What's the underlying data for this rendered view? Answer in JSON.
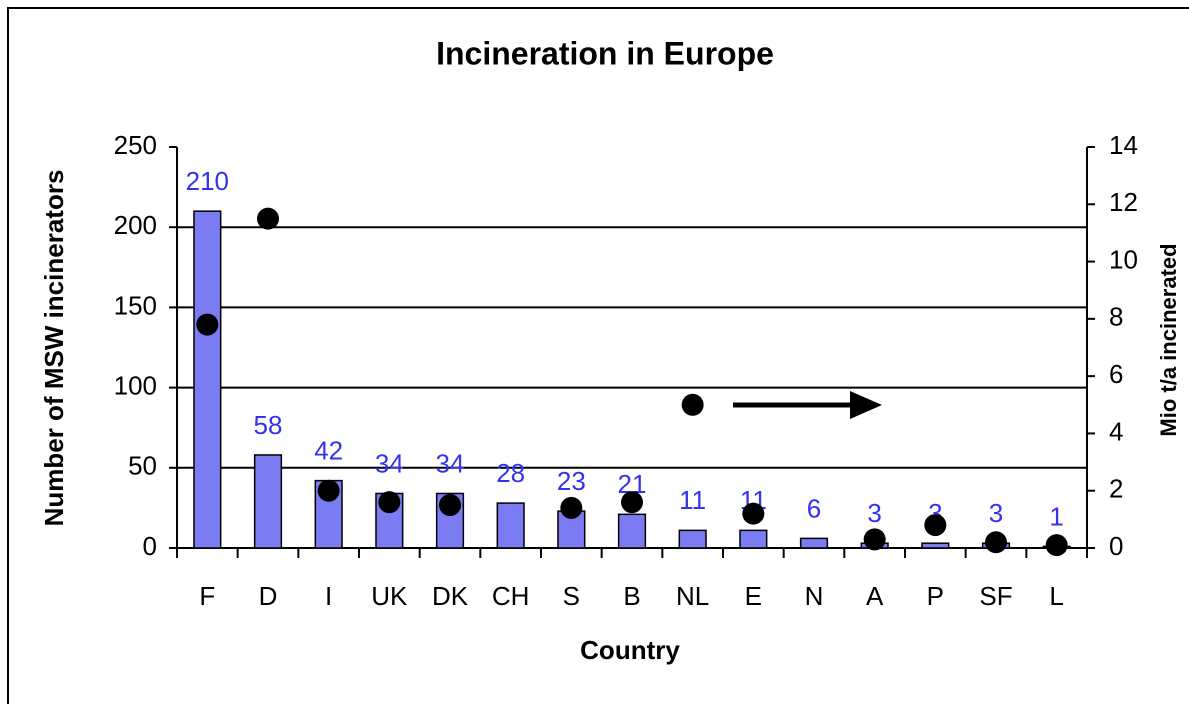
{
  "chart_data": {
    "type": "bar",
    "title": "Incineration in Europe",
    "x_label": "Country",
    "y_label": "Number of MSW incinerators",
    "y2_label": "Mio t/a incinerated",
    "categories": [
      "F",
      "D",
      "I",
      "UK",
      "DK",
      "CH",
      "S",
      "B",
      "NL",
      "E",
      "N",
      "A",
      "P",
      "SF",
      "L"
    ],
    "series": [
      {
        "type": "bar",
        "color": "#7b7bf2",
        "label_color": "#3333ee",
        "values": [
          210,
          58,
          42,
          34,
          34,
          28,
          23,
          21,
          11,
          11,
          6,
          3,
          3,
          3,
          1
        ]
      },
      {
        "type": "scatter",
        "axis": "y2",
        "color": "#000000",
        "values": [
          7.8,
          11.5,
          2.0,
          1.6,
          1.5,
          null,
          1.4,
          1.6,
          5.0,
          1.2,
          null,
          0.3,
          0.8,
          0.2,
          0.1
        ]
      }
    ],
    "ylim": [
      0,
      250
    ],
    "yticks": [
      0,
      50,
      100,
      150,
      200,
      250
    ],
    "y2lim": [
      0,
      14
    ],
    "y2ticks": [
      0,
      2,
      4,
      6,
      8,
      10,
      12,
      14
    ],
    "grid": true
  }
}
